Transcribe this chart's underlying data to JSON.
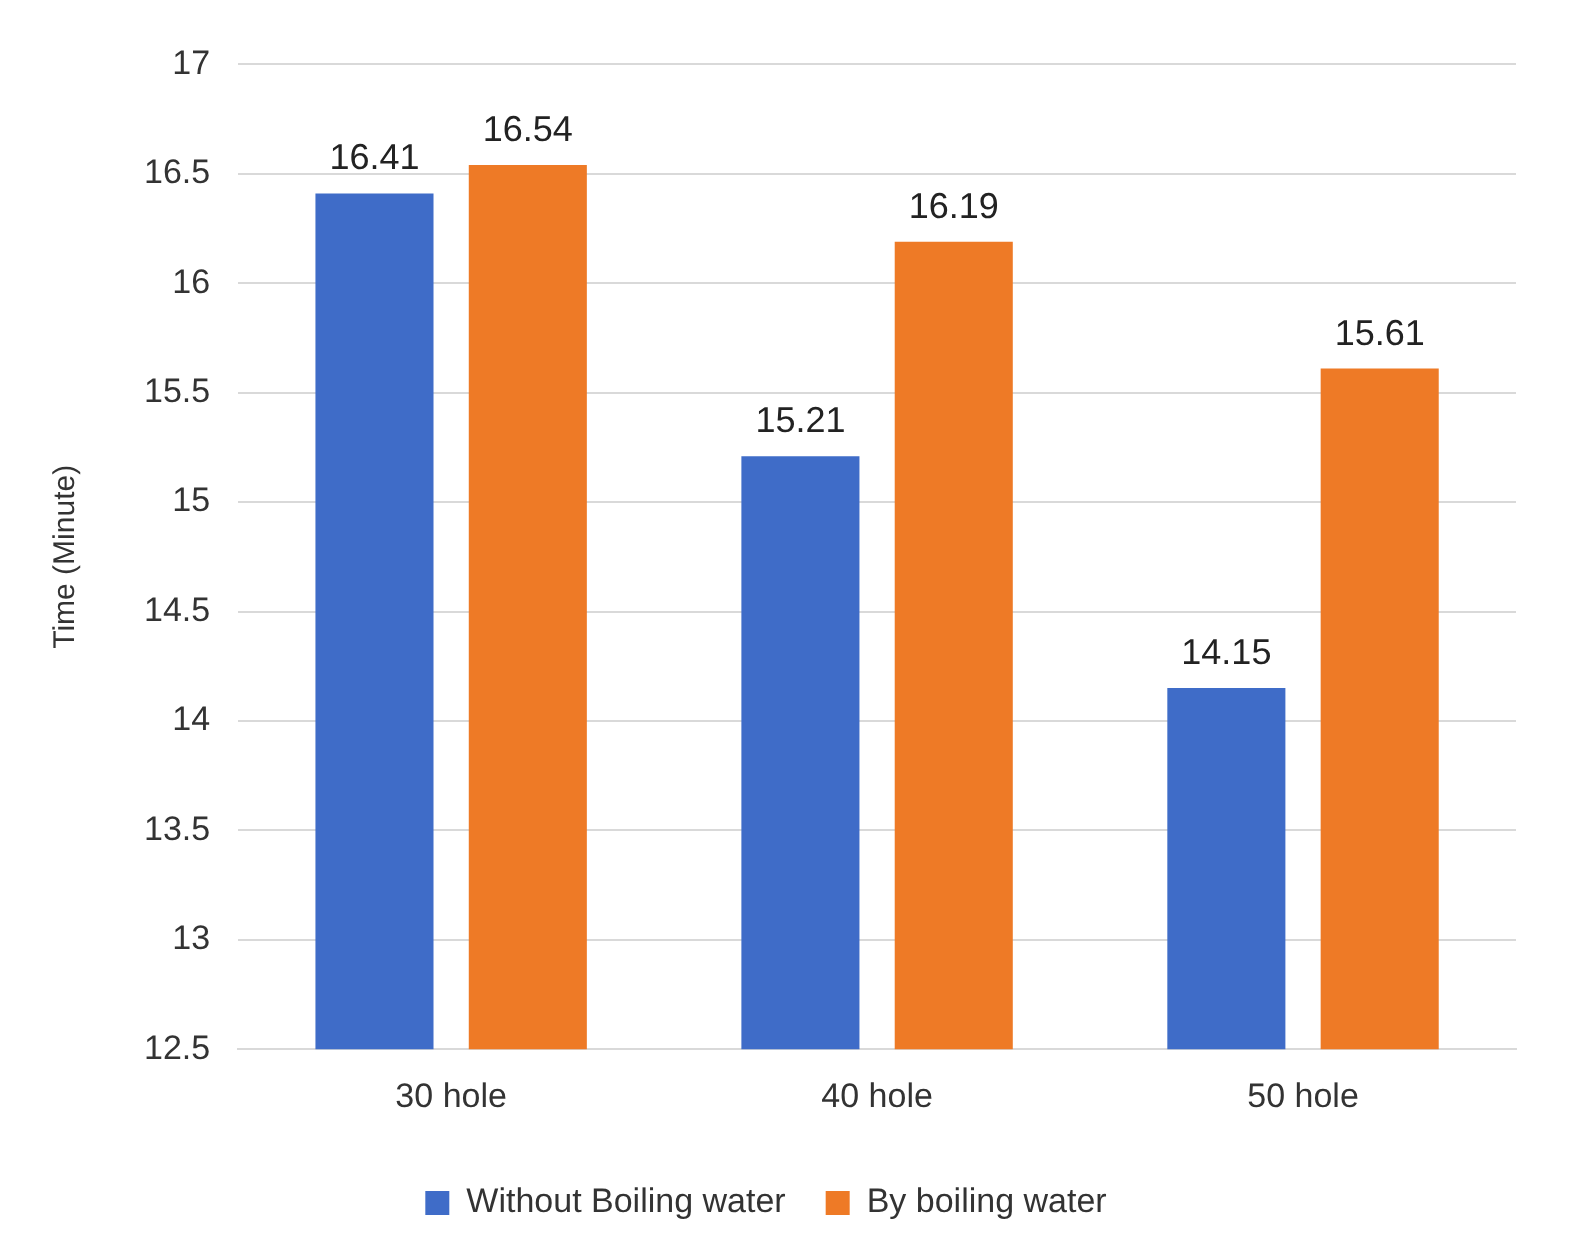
{
  "chart_data": {
    "type": "bar",
    "ylabel": "Time (Minute)",
    "categories": [
      "30 hole",
      "40 hole",
      "50 hole"
    ],
    "series": [
      {
        "name": "Without Boiling water",
        "color": "#3f6cc8",
        "values": [
          16.41,
          15.21,
          14.15
        ]
      },
      {
        "name": "By boiling water",
        "color": "#ee7a26",
        "values": [
          16.54,
          16.19,
          15.61
        ]
      }
    ],
    "ylim": [
      12.5,
      17
    ],
    "yticks": [
      12.5,
      13,
      13.5,
      14,
      14.5,
      15,
      15.5,
      16,
      16.5,
      17
    ],
    "grid": "y",
    "legend": "bottom",
    "data_labels": true
  }
}
